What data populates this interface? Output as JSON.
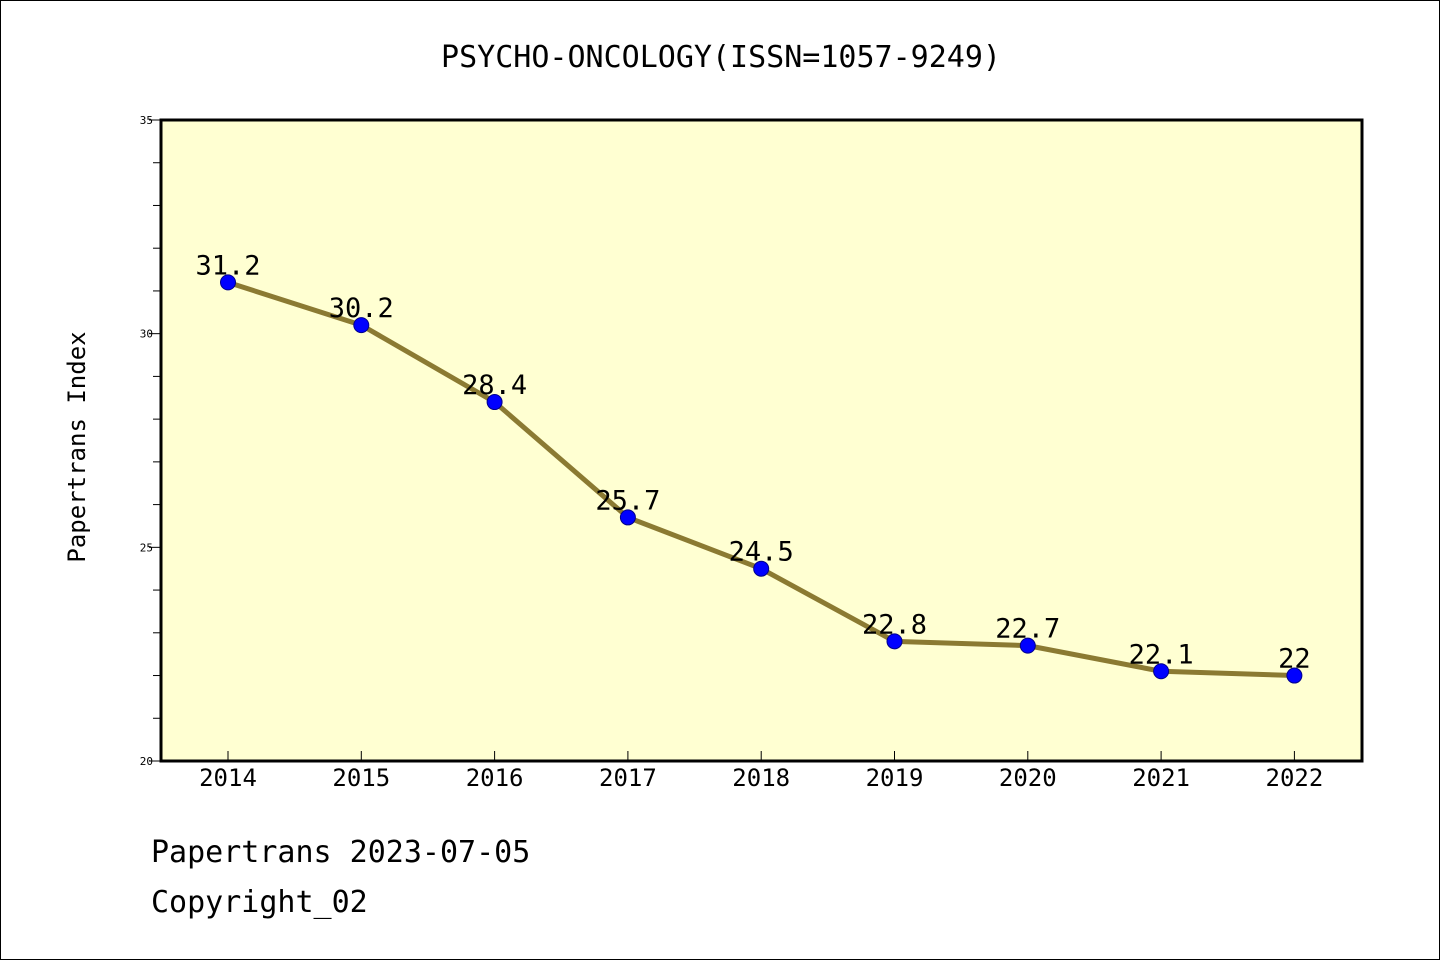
{
  "chart_data": {
    "type": "line",
    "title": "PSYCHO-ONCOLOGY(ISSN=1057-9249)",
    "ylabel": "Papertrans Index",
    "xlabel": "",
    "categories": [
      "2014",
      "2015",
      "2016",
      "2017",
      "2018",
      "2019",
      "2020",
      "2021",
      "2022"
    ],
    "values": [
      31.2,
      30.2,
      28.4,
      25.7,
      24.5,
      22.8,
      22.7,
      22.1,
      22
    ],
    "data_labels": [
      "31.2",
      "30.2",
      "28.4",
      "25.7",
      "24.5",
      "22.8",
      "22.7",
      "22.1",
      "22"
    ],
    "ylim": [
      20,
      35
    ],
    "yticks": [
      20,
      25,
      30,
      35
    ],
    "grid": false,
    "line_color": "#8b7a32",
    "marker_color": "#0000ff",
    "plot_background": "#ffffd2"
  },
  "footer": {
    "line1": "Papertrans 2023-07-05",
    "line2": "Copyright_02"
  }
}
